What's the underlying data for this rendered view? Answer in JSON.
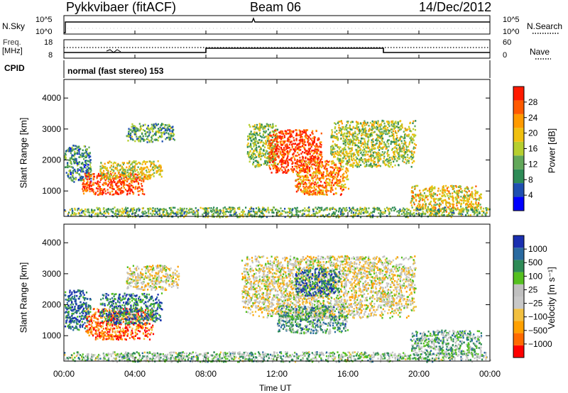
{
  "header": {
    "radar": "Pykkvibaer (fitACF)",
    "beam": "Beam 06",
    "date": "14/Dec/2012"
  },
  "top_panels": {
    "nsky_label": "N.Sky",
    "nsky_ticks": [
      "10^5",
      "10^0"
    ],
    "nsearch_label": "N.Search",
    "nsearch_ticks": [
      "10^5",
      "10^0"
    ],
    "freq_label_top": "Freq.",
    "freq_label_bot": "[MHz]",
    "freq_ticks": [
      "18",
      "8"
    ],
    "nave_label": "Nave",
    "nave_ticks": [
      "60",
      "0"
    ],
    "cpid_label": "CPID",
    "cpid_text": "normal (fast stereo) 153"
  },
  "colors": {
    "power": [
      "#0000ff",
      "#1f4fb0",
      "#2e8b57",
      "#62a85a",
      "#b6cf2f",
      "#f0c010",
      "#ff9a00",
      "#ff5a00",
      "#ff1a00"
    ],
    "velocity": [
      "#ff0000",
      "#ff6a00",
      "#ffa000",
      "#f2c040",
      "#c8c8c8",
      "#c0c0c0",
      "#55c020",
      "#2e8b57",
      "#2a6aa0",
      "#1a2fb0"
    ]
  },
  "chart_data": [
    {
      "type": "heatmap",
      "name": "power",
      "ylabel": "Slant Range [km]",
      "yticks": [
        "1000",
        "2000",
        "3000",
        "4000"
      ],
      "ylim": [
        180,
        4600
      ],
      "xticks": [
        "00:00",
        "04:00",
        "08:00",
        "12:00",
        "16:00",
        "20:00",
        "00:00"
      ],
      "xlim": [
        0,
        24
      ],
      "colorbar_label": "Power [dB]",
      "colorbar_ticks": [
        "4",
        "8",
        "12",
        "16",
        "20",
        "24",
        "28"
      ],
      "blobs": [
        {
          "x": [
            0.0,
            1.5
          ],
          "y": [
            1300,
            2500
          ],
          "level": 0.3
        },
        {
          "x": [
            1.0,
            4.5
          ],
          "y": [
            900,
            1600
          ],
          "level": 0.9
        },
        {
          "x": [
            2.0,
            5.5
          ],
          "y": [
            1400,
            2000
          ],
          "level": 0.55
        },
        {
          "x": [
            3.5,
            6.2
          ],
          "y": [
            2600,
            3200
          ],
          "level": 0.35
        },
        {
          "x": [
            10.3,
            12.0
          ],
          "y": [
            1800,
            3200
          ],
          "level": 0.45
        },
        {
          "x": [
            11.5,
            14.5
          ],
          "y": [
            1600,
            3000
          ],
          "level": 0.92
        },
        {
          "x": [
            13.0,
            16.0
          ],
          "y": [
            900,
            2000
          ],
          "level": 0.75
        },
        {
          "x": [
            15.0,
            19.8
          ],
          "y": [
            1800,
            3300
          ],
          "level": 0.5
        },
        {
          "x": [
            19.5,
            23.5
          ],
          "y": [
            350,
            1200
          ],
          "level": 0.6
        },
        {
          "x": [
            0.0,
            24.0
          ],
          "y": [
            180,
            500
          ],
          "level": 0.4
        }
      ]
    },
    {
      "type": "heatmap",
      "name": "velocity",
      "ylabel": "Slant Range [km]",
      "yticks": [
        "1000",
        "2000",
        "3000",
        "4000"
      ],
      "ylim": [
        180,
        4600
      ],
      "xticks": [
        "00:00",
        "04:00",
        "08:00",
        "12:00",
        "16:00",
        "20:00",
        "00:00"
      ],
      "xlim": [
        0,
        24
      ],
      "xlabel": "Time UT",
      "colorbar_label": "Velocity [m s⁻¹]",
      "colorbar_ticks": [
        "1000",
        "500",
        "100",
        "25",
        "−25",
        "−100",
        "−500",
        "−1000"
      ],
      "blobs": [
        {
          "x": [
            0.0,
            1.5
          ],
          "y": [
            1200,
            2500
          ],
          "level": 0.85
        },
        {
          "x": [
            1.2,
            5.0
          ],
          "y": [
            900,
            1900
          ],
          "level": 0.15
        },
        {
          "x": [
            2.0,
            5.5
          ],
          "y": [
            1400,
            2400
          ],
          "level": 0.8
        },
        {
          "x": [
            3.5,
            6.5
          ],
          "y": [
            2500,
            3300
          ],
          "level": 0.45
        },
        {
          "x": [
            10.0,
            19.8
          ],
          "y": [
            1600,
            3600
          ],
          "level": 0.45
        },
        {
          "x": [
            12.0,
            16.0
          ],
          "y": [
            1100,
            2000
          ],
          "level": 0.7
        },
        {
          "x": [
            13.0,
            15.5
          ],
          "y": [
            2300,
            3200
          ],
          "level": 0.85
        },
        {
          "x": [
            19.5,
            23.5
          ],
          "y": [
            400,
            1200
          ],
          "level": 0.65
        },
        {
          "x": [
            0.0,
            24.0
          ],
          "y": [
            180,
            500
          ],
          "level": 0.6
        }
      ]
    }
  ]
}
